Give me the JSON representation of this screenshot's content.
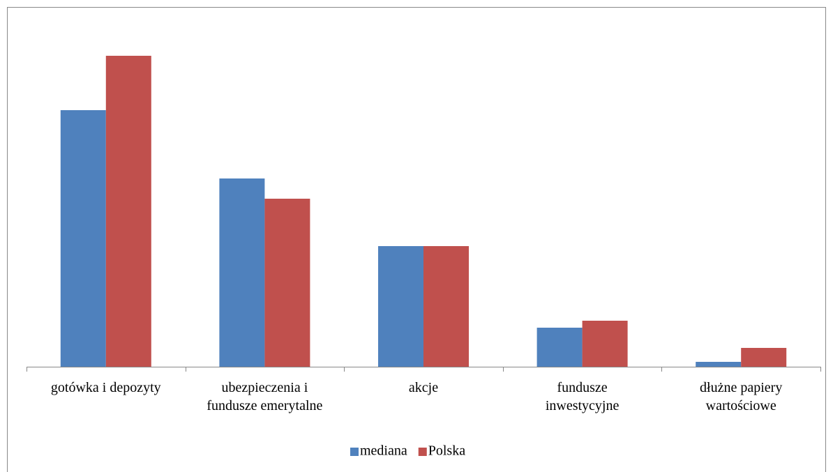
{
  "chart_data": {
    "type": "bar",
    "categories": [
      "gotówka i depozyty",
      "ubezpieczenia i\nfundusze emerytalne",
      "akcje",
      "fundusze\ninwestycyjne",
      "dłużne papiery\nwartościowe"
    ],
    "series": [
      {
        "name": "mediana",
        "color": "#4f81bd",
        "values": [
          36.8,
          27.0,
          17.3,
          5.6,
          0.7
        ]
      },
      {
        "name": "Polska",
        "color": "#c0504d",
        "values": [
          44.6,
          24.1,
          17.3,
          6.6,
          2.7
        ]
      }
    ],
    "ylim": [
      0,
      50
    ],
    "legend": "bottom"
  }
}
